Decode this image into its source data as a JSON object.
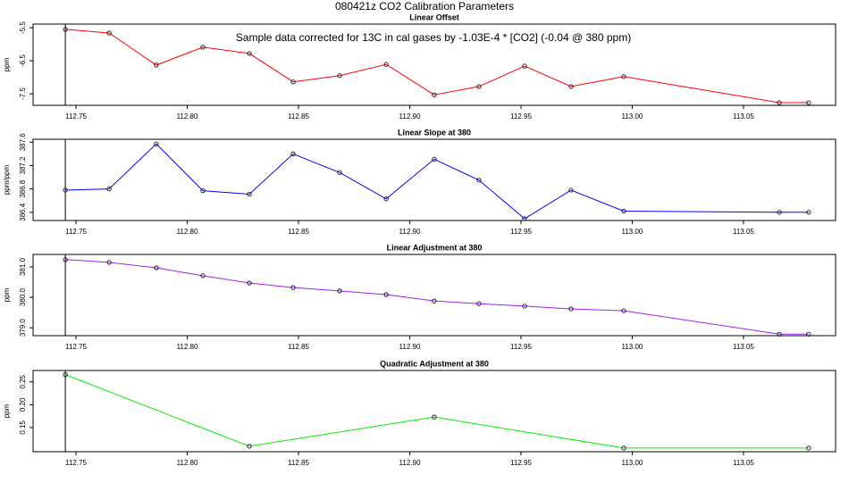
{
  "title": "080421z   CO2 Calibration Parameters",
  "annotation": "Sample data corrected for 13C in cal gases by -1.03E-4 * [CO2] (-0.04 @ 380 ppm)",
  "chart_data": [
    {
      "type": "line",
      "title": "Linear Offset",
      "ylabel": "ppm",
      "x": [
        112.7452,
        112.7649,
        112.7861,
        112.807,
        112.8279,
        112.8476,
        112.8685,
        112.8894,
        112.911,
        112.9311,
        112.9516,
        112.9725,
        112.9962,
        113.0661,
        113.0793
      ],
      "values": [
        -5.55,
        -5.66,
        -6.63,
        -6.09,
        -6.28,
        -7.14,
        -6.95,
        -6.61,
        -7.53,
        -7.28,
        -6.66,
        -7.28,
        -6.98,
        -7.77,
        -7.77
      ],
      "color": "#ff0000",
      "xlim": [
        112.7307,
        113.0914
      ],
      "ylim": [
        -7.85,
        -5.39
      ],
      "xticks": [
        112.75,
        {
          "value": 112.8,
          "label": "112.80"
        },
        112.85,
        {
          "value": 112.9,
          "label": "112.90"
        },
        112.95,
        {
          "value": 113.0,
          "label": "113.00"
        },
        113.05
      ],
      "yticks": [
        -7.5,
        -6.5,
        -5.5
      ]
    },
    {
      "type": "line",
      "title": "Linear Slope at 380",
      "ylabel": "ppm/ppm",
      "x": [
        112.7452,
        112.7649,
        112.7861,
        112.807,
        112.8279,
        112.8476,
        112.8685,
        112.8894,
        112.911,
        112.9311,
        112.9516,
        112.9725,
        112.9962,
        113.0661,
        113.0793
      ],
      "values": [
        386.78,
        386.8,
        387.57,
        386.77,
        386.71,
        387.4,
        387.08,
        386.63,
        387.31,
        386.95,
        386.29,
        386.78,
        386.42,
        386.4,
        386.4
      ],
      "color": "#0000ff",
      "xlim": [
        112.7307,
        113.0914
      ],
      "ylim": [
        386.26,
        387.65
      ],
      "xticks": [
        112.75,
        {
          "value": 112.8,
          "label": "112.80"
        },
        112.85,
        {
          "value": 112.9,
          "label": "112.90"
        },
        112.95,
        {
          "value": 113.0,
          "label": "113.00"
        },
        113.05
      ],
      "yticks": [
        386.4,
        386.8,
        387.2,
        387.6
      ]
    },
    {
      "type": "line",
      "title": "Linear Adjustment at 380",
      "ylabel": "ppm",
      "x": [
        112.7452,
        112.7649,
        112.7861,
        112.807,
        112.8279,
        112.8476,
        112.8685,
        112.8894,
        112.911,
        112.9311,
        112.9516,
        112.9725,
        112.9962,
        113.0661,
        113.0793
      ],
      "values": [
        381.24,
        381.15,
        380.97,
        380.71,
        380.47,
        380.32,
        380.21,
        380.09,
        379.88,
        379.79,
        379.71,
        379.62,
        379.56,
        378.79,
        378.79
      ],
      "color": "#a020f0",
      "xlim": [
        112.7307,
        113.0914
      ],
      "ylim": [
        378.74,
        381.41
      ],
      "xticks": [
        112.75,
        {
          "value": 112.8,
          "label": "112.80"
        },
        112.85,
        {
          "value": 112.9,
          "label": "112.90"
        },
        112.95,
        {
          "value": 113.0,
          "label": "113.00"
        },
        113.05
      ],
      "yticks": [
        {
          "value": 379,
          "label": "379.0"
        },
        {
          "value": 380,
          "label": "380.0"
        },
        {
          "value": 381,
          "label": "381.0"
        }
      ]
    },
    {
      "type": "line",
      "title": "Quadratic Adjustment at 380",
      "ylabel": "ppm",
      "x": [
        112.7452,
        112.8279,
        112.911,
        112.9962,
        113.0793
      ],
      "values": [
        0.266,
        0.109,
        0.173,
        0.105,
        0.105
      ],
      "color": "#00ee00",
      "xlim": [
        112.7307,
        113.0914
      ],
      "ylim": [
        0.097,
        0.275
      ],
      "xticks": [
        112.75,
        {
          "value": 112.8,
          "label": "112.80"
        },
        112.85,
        {
          "value": 112.9,
          "label": "112.90"
        },
        112.95,
        {
          "value": 113.0,
          "label": "113.00"
        },
        113.05
      ],
      "yticks": [
        0.15,
        {
          "value": 0.2,
          "label": "0.20"
        },
        0.25
      ]
    }
  ]
}
